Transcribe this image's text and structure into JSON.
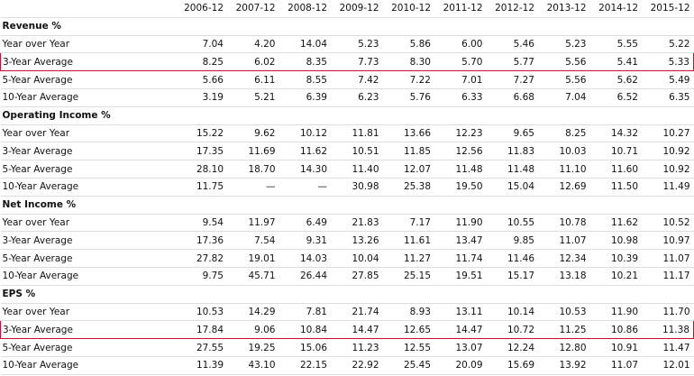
{
  "columns": [
    "2006-12",
    "2007-12",
    "2008-12",
    "2009-12",
    "2010-12",
    "2011-12",
    "2012-12",
    "2013-12",
    "2014-12",
    "2015-12"
  ],
  "sections": [
    {
      "title": "Revenue %",
      "rows": [
        {
          "label": "Year over Year",
          "values": [
            "7.04",
            "4.20",
            "14.04",
            "5.23",
            "5.86",
            "6.00",
            "5.46",
            "5.23",
            "5.55",
            "5.22"
          ]
        },
        {
          "label": "3-Year Average",
          "highlight": true,
          "values": [
            "8.25",
            "6.02",
            "8.35",
            "7.73",
            "8.30",
            "5.70",
            "5.77",
            "5.56",
            "5.41",
            "5.33"
          ]
        },
        {
          "label": "5-Year Average",
          "values": [
            "5.66",
            "6.11",
            "8.55",
            "7.42",
            "7.22",
            "7.01",
            "7.27",
            "5.56",
            "5.62",
            "5.49"
          ]
        },
        {
          "label": "10-Year Average",
          "values": [
            "3.19",
            "5.21",
            "6.39",
            "6.23",
            "5.76",
            "6.33",
            "6.68",
            "7.04",
            "6.52",
            "6.35"
          ]
        }
      ]
    },
    {
      "title": "Operating Income %",
      "rows": [
        {
          "label": "Year over Year",
          "values": [
            "15.22",
            "9.62",
            "10.12",
            "11.81",
            "13.66",
            "12.23",
            "9.65",
            "8.25",
            "14.32",
            "10.27"
          ]
        },
        {
          "label": "3-Year Average",
          "values": [
            "17.35",
            "11.69",
            "11.62",
            "10.51",
            "11.85",
            "12.56",
            "11.83",
            "10.03",
            "10.71",
            "10.92"
          ]
        },
        {
          "label": "5-Year Average",
          "values": [
            "28.10",
            "18.70",
            "14.30",
            "11.40",
            "12.07",
            "11.48",
            "11.48",
            "11.10",
            "11.60",
            "10.92"
          ]
        },
        {
          "label": "10-Year Average",
          "values": [
            "11.75",
            "—",
            "—",
            "30.98",
            "25.38",
            "19.50",
            "15.04",
            "12.69",
            "11.50",
            "11.49"
          ]
        }
      ]
    },
    {
      "title": "Net Income %",
      "rows": [
        {
          "label": "Year over Year",
          "values": [
            "9.54",
            "11.97",
            "6.49",
            "21.83",
            "7.17",
            "11.90",
            "10.55",
            "10.78",
            "11.62",
            "10.52"
          ]
        },
        {
          "label": "3-Year Average",
          "values": [
            "17.36",
            "7.54",
            "9.31",
            "13.26",
            "11.61",
            "13.47",
            "9.85",
            "11.07",
            "10.98",
            "10.97"
          ]
        },
        {
          "label": "5-Year Average",
          "values": [
            "27.82",
            "19.01",
            "14.03",
            "10.04",
            "11.27",
            "11.74",
            "11.46",
            "12.34",
            "10.39",
            "11.07"
          ]
        },
        {
          "label": "10-Year Average",
          "values": [
            "9.75",
            "45.71",
            "26.44",
            "27.85",
            "25.15",
            "19.51",
            "15.17",
            "13.18",
            "10.21",
            "11.17"
          ]
        }
      ]
    },
    {
      "title": "EPS %",
      "rows": [
        {
          "label": "Year over Year",
          "values": [
            "10.53",
            "14.29",
            "7.81",
            "21.74",
            "8.93",
            "13.11",
            "10.14",
            "10.53",
            "11.90",
            "11.70"
          ]
        },
        {
          "label": "3-Year Average",
          "highlight": true,
          "values": [
            "17.84",
            "9.06",
            "10.84",
            "14.47",
            "12.65",
            "14.47",
            "10.72",
            "11.25",
            "10.86",
            "11.38"
          ]
        },
        {
          "label": "5-Year Average",
          "values": [
            "27.55",
            "19.25",
            "15.06",
            "11.23",
            "12.55",
            "13.07",
            "12.24",
            "12.80",
            "10.91",
            "11.47"
          ]
        },
        {
          "label": "10-Year Average",
          "values": [
            "11.39",
            "43.10",
            "22.15",
            "22.92",
            "25.45",
            "20.09",
            "15.69",
            "13.92",
            "11.07",
            "12.01"
          ]
        }
      ]
    }
  ]
}
